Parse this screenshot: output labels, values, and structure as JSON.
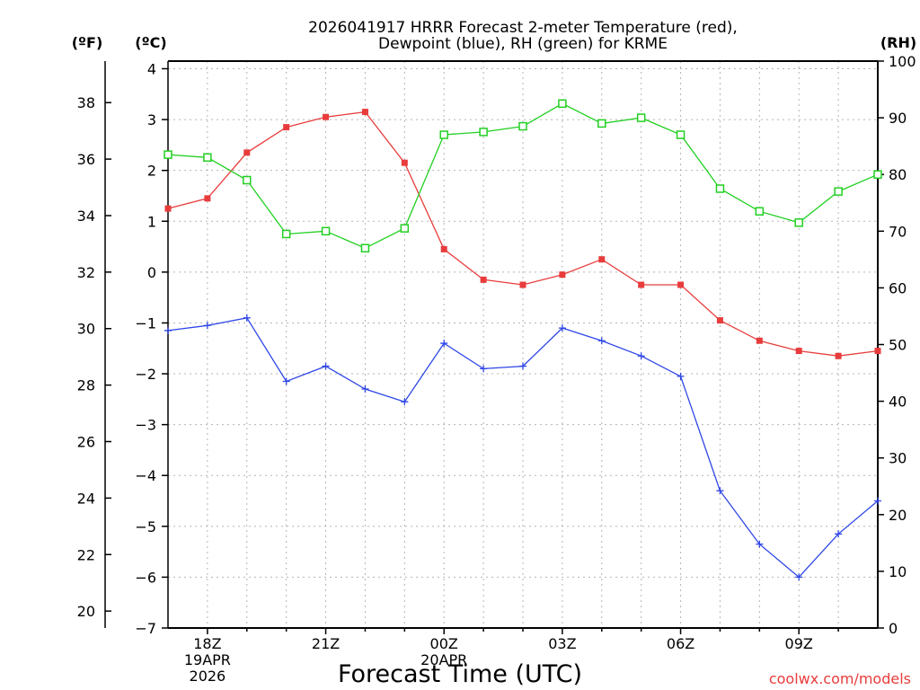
{
  "chart_data": {
    "type": "line",
    "title_line1": "2026041917 HRRR Forecast 2-meter Temperature (red),",
    "title_line2": "Dewpoint (blue), RH (green) for KRME",
    "xlabel": "Forecast Time (UTC)",
    "credit": "coolwx.com/models",
    "unit_f": "(ºF)",
    "unit_c": "(ºC)",
    "unit_rh": "(RH)",
    "x_hours": [
      17,
      18,
      19,
      20,
      21,
      22,
      23,
      24,
      25,
      26,
      27,
      28,
      29,
      30,
      31,
      32,
      33,
      34,
      35
    ],
    "x_ticks": [
      {
        "hour": 18,
        "lines": [
          "18Z",
          "19APR",
          "2026"
        ]
      },
      {
        "hour": 21,
        "lines": [
          "21Z"
        ]
      },
      {
        "hour": 24,
        "lines": [
          "00Z",
          "20APR"
        ]
      },
      {
        "hour": 27,
        "lines": [
          "03Z"
        ]
      },
      {
        "hour": 30,
        "lines": [
          "06Z"
        ]
      },
      {
        "hour": 33,
        "lines": [
          "09Z"
        ]
      }
    ],
    "xlim": [
      17,
      35
    ],
    "ylim_c": [
      -7,
      4.15
    ],
    "ylim_rh": [
      0,
      100
    ],
    "c_ticks": [
      4,
      3,
      2,
      1,
      0,
      -1,
      -2,
      -3,
      -4,
      -5,
      -6,
      -7
    ],
    "f_ticks": [
      38,
      36,
      34,
      32,
      30,
      28,
      26,
      24,
      22,
      20
    ],
    "rh_ticks": [
      100,
      90,
      80,
      70,
      60,
      50,
      40,
      30,
      20,
      10,
      0
    ],
    "grid": true,
    "series": [
      {
        "name": "Temperature",
        "color": "#e83c3c",
        "marker": "filled-square",
        "axis": "c",
        "values": [
          1.25,
          1.45,
          2.35,
          2.85,
          3.05,
          3.15,
          2.15,
          0.45,
          -0.15,
          -0.25,
          -0.05,
          0.25,
          -0.25,
          -0.25,
          -0.95,
          -1.35,
          -1.55,
          -1.65,
          -1.55
        ]
      },
      {
        "name": "Dewpoint",
        "color": "#2e46e6",
        "marker": "plus",
        "axis": "c",
        "values": [
          -1.15,
          -1.05,
          -0.9,
          -2.15,
          -1.85,
          -2.3,
          -2.55,
          -1.4,
          -1.9,
          -1.85,
          -1.1,
          -1.35,
          -1.65,
          -2.05,
          -4.3,
          -5.35,
          -6.0,
          -5.15,
          -4.5
        ]
      },
      {
        "name": "RH",
        "color": "#22d022",
        "marker": "open-square",
        "axis": "rh",
        "values": [
          83.5,
          83,
          79,
          69.5,
          70,
          67,
          70.5,
          87,
          87.5,
          88.5,
          92.5,
          89,
          90,
          87,
          77.5,
          73.5,
          71.5,
          77,
          80
        ]
      }
    ]
  }
}
